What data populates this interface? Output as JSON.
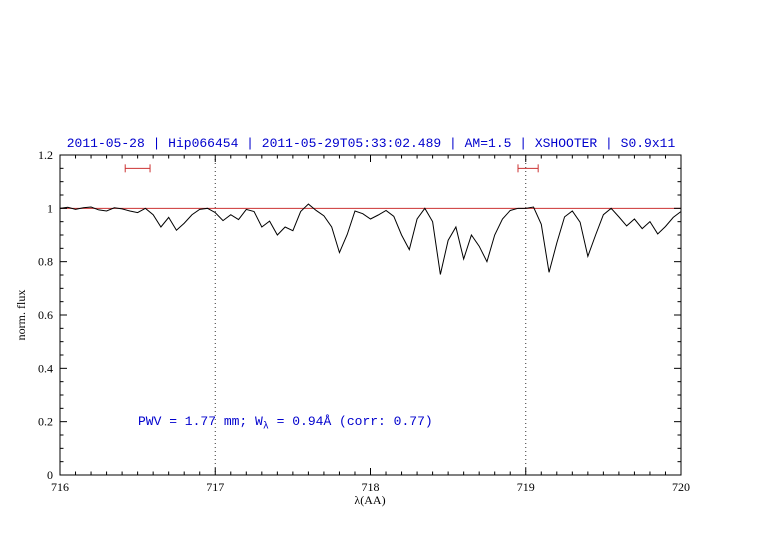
{
  "chart_data": {
    "type": "line",
    "title": "2011-05-28 | Hip066454 | 2011-05-29T05:33:02.489 | AM=1.5 | XSHOOTER | S0.9x11",
    "title_color": "#0000cd",
    "xlabel": "λ(AA)",
    "ylabel": "norm. flux",
    "xlim": [
      716,
      720
    ],
    "ylim": [
      0,
      1.2
    ],
    "x_major_ticks": [
      716,
      717,
      718,
      719,
      720
    ],
    "x_tick_labels": [
      "716",
      "717",
      "718",
      "719",
      "720"
    ],
    "x_minor_step": 0.1,
    "y_major_ticks": [
      0,
      0.2,
      0.4,
      0.6,
      0.8,
      1.0,
      1.2
    ],
    "y_tick_labels": [
      "0",
      "0.2",
      "0.4",
      "0.6",
      "0.8",
      "1",
      "1.2"
    ],
    "y_minor_step": 0.05,
    "grid": "off",
    "dotted_vlines": [
      717,
      719
    ],
    "continuum_line": {
      "y": 1.0,
      "color": "#cc3333"
    },
    "markers": [
      {
        "x1": 716.42,
        "x2": 716.58,
        "y": 1.15,
        "color": "#cc3333"
      },
      {
        "x1": 718.95,
        "x2": 719.08,
        "y": 1.15,
        "color": "#cc3333"
      }
    ],
    "series": [
      {
        "name": "spectrum",
        "color": "#000000",
        "x_start": 716.0,
        "x_step": 0.05,
        "values": [
          1.0,
          1.004,
          0.996,
          1.002,
          1.005,
          0.994,
          0.99,
          1.002,
          0.998,
          0.99,
          0.984,
          1.0,
          0.976,
          0.93,
          0.966,
          0.918,
          0.944,
          0.976,
          0.996,
          1.0,
          0.984,
          0.954,
          0.976,
          0.958,
          0.996,
          0.988,
          0.93,
          0.952,
          0.9,
          0.93,
          0.916,
          0.988,
          1.016,
          0.992,
          0.972,
          0.93,
          0.834,
          0.902,
          0.99,
          0.98,
          0.96,
          0.975,
          0.992,
          0.97,
          0.9,
          0.845,
          0.96,
          1.0,
          0.95,
          0.752,
          0.88,
          0.93,
          0.81,
          0.9,
          0.858,
          0.8,
          0.9,
          0.96,
          0.992,
          1.0,
          1.0,
          1.005,
          0.94,
          0.76,
          0.87,
          0.968,
          0.99,
          0.948,
          0.82,
          0.9,
          0.976,
          1.0,
          0.968,
          0.934,
          0.96,
          0.924,
          0.95,
          0.904,
          0.932,
          0.966,
          0.988
        ]
      }
    ],
    "annotation": {
      "prefix": "PWV = 1.77 mm; W",
      "sub": "λ",
      "suffix": " = 0.94Å (corr: 0.77)",
      "color": "#0000cd"
    }
  }
}
